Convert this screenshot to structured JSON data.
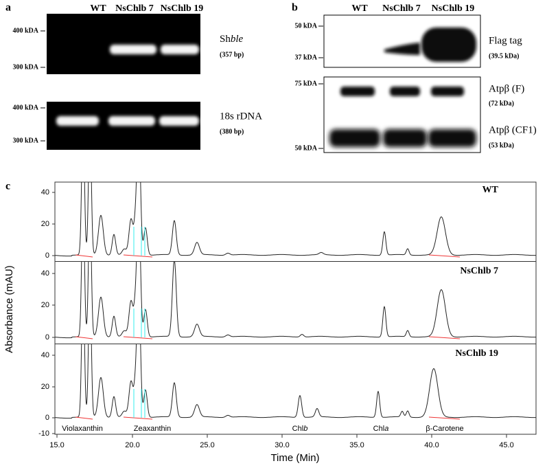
{
  "panel_a": {
    "label": "a",
    "columns": [
      "WT",
      "NsChlb 7",
      "NsChlb 19"
    ],
    "top": {
      "markers": [
        "400 kDA",
        "300 kDA"
      ],
      "name": "Sh",
      "name_italic": "ble",
      "size": "(357 bp)"
    },
    "bottom": {
      "markers": [
        "400 kDA",
        "300 kDA"
      ],
      "name": "18s rDNA",
      "size": "(380 bp)"
    }
  },
  "panel_b": {
    "label": "b",
    "columns": [
      "WT",
      "NsChlb 7",
      "NsChlb 19"
    ],
    "top": {
      "markers": [
        "50 kDA",
        "37 kDA"
      ],
      "name": "Flag tag",
      "size": "(39.5 kDa)"
    },
    "bottom": {
      "markers": [
        "75 kDA",
        "50 kDA"
      ],
      "bands": [
        {
          "name": "Atpβ (F)",
          "size": "(72 kDa)"
        },
        {
          "name": "Atpβ (CF1)",
          "size": "(53 kDa)"
        }
      ]
    }
  },
  "panel_c": {
    "label": "c",
    "y_axis_label": "Absorbance (mAU)",
    "x_axis_label": "Time (Min)",
    "xticks": [
      "15.0",
      "20.0",
      "25.0",
      "30.0",
      "35.0",
      "40.0",
      "45.0"
    ],
    "panels": [
      {
        "name": "WT",
        "yticks": [
          "40",
          "20",
          "0"
        ]
      },
      {
        "name": "NsChlb 7",
        "yticks": [
          "40",
          "20",
          "0"
        ]
      },
      {
        "name": "NsChlb 19",
        "yticks": [
          "40",
          "20",
          "0",
          "-10"
        ]
      }
    ],
    "compounds": [
      {
        "text": "Violaxanthin"
      },
      {
        "text": "Zeaxanthin"
      },
      {
        "text": "Chl",
        "italic": "b"
      },
      {
        "text": "Chl",
        "italic": "a"
      },
      {
        "text": "β-Carotene"
      }
    ]
  }
}
